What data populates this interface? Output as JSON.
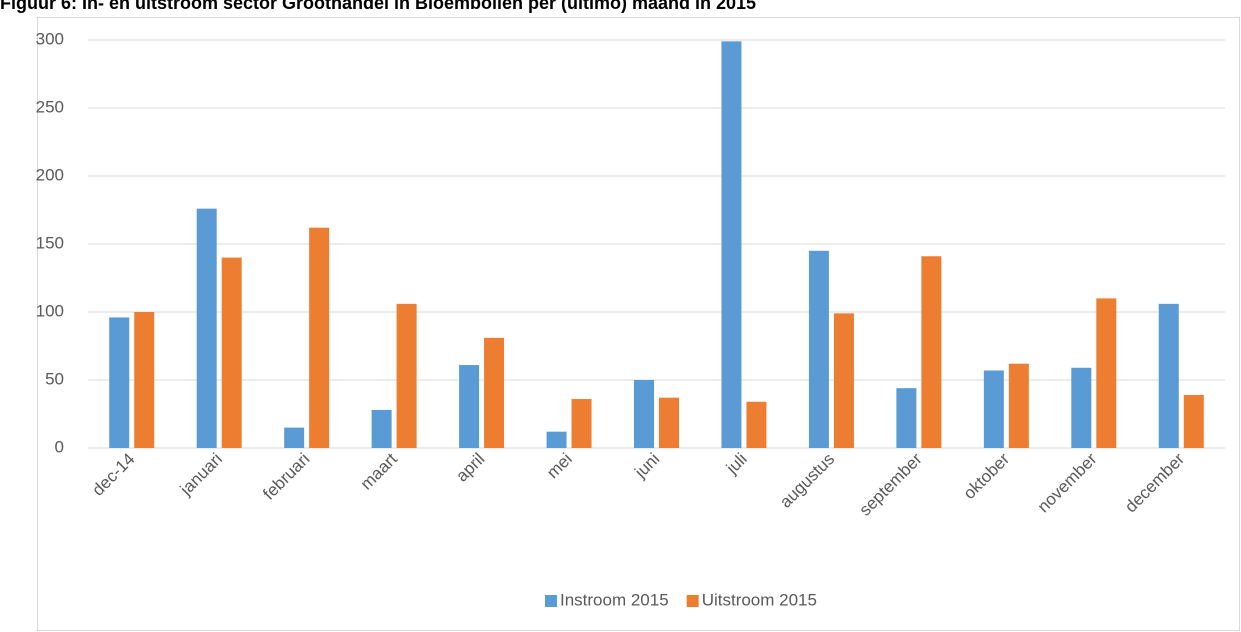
{
  "chart_data": {
    "type": "bar",
    "title": "Figuur 6: In- en uitstroom sector Groothandel in Bloembollen per (ultimo) maand in 2015",
    "categories": [
      "dec-14",
      "januari",
      "februari",
      "maart",
      "april",
      "mei",
      "juni",
      "juli",
      "augustus",
      "september",
      "oktober",
      "november",
      "december"
    ],
    "series": [
      {
        "name": "Instroom 2015",
        "color": "#5b9bd5",
        "values": [
          96,
          176,
          15,
          28,
          61,
          12,
          50,
          299,
          145,
          44,
          57,
          59,
          106
        ]
      },
      {
        "name": "Uitstroom 2015",
        "color": "#ed7d31",
        "values": [
          100,
          140,
          162,
          106,
          81,
          36,
          37,
          34,
          99,
          141,
          62,
          110,
          39
        ]
      }
    ],
    "ylim": [
      0,
      300
    ],
    "yticks": [
      0,
      50,
      100,
      150,
      200,
      250,
      300
    ],
    "grid": true,
    "legend": "bottom"
  }
}
